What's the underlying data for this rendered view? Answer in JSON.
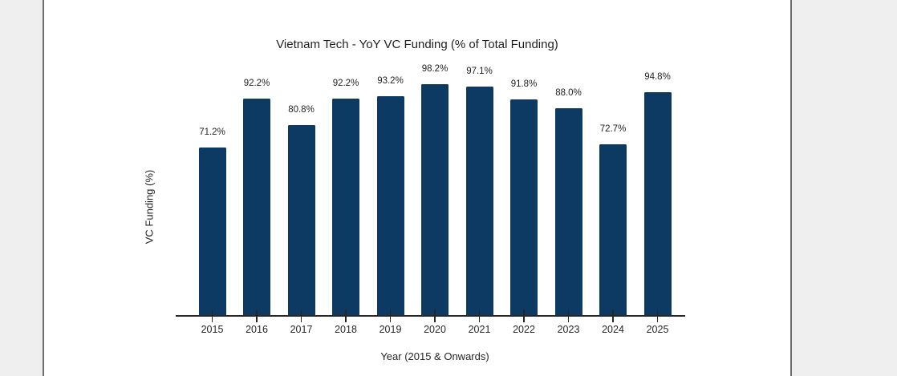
{
  "page": {
    "gutter_color": "#efefef",
    "gutter_border_color": "#6e6e6e",
    "canvas_color": "#ffffff"
  },
  "chart_data": {
    "type": "bar",
    "title": "Vietnam Tech - YoY VC Funding (% of Total Funding)",
    "xlabel": "Year (2015 & Onwards)",
    "ylabel": "VC Funding (%)",
    "categories": [
      "2015",
      "2016",
      "2017",
      "2018",
      "2019",
      "2020",
      "2021",
      "2022",
      "2023",
      "2024",
      "2025"
    ],
    "values": [
      71.2,
      92.2,
      80.8,
      92.2,
      93.2,
      98.2,
      97.1,
      91.8,
      88.0,
      72.7,
      94.8
    ],
    "data_labels": [
      "71.2%",
      "92.2%",
      "80.8%",
      "92.2%",
      "93.2%",
      "98.2%",
      "97.1%",
      "91.8%",
      "88.0%",
      "72.7%",
      "94.8%"
    ],
    "bar_color": "#0d3a63",
    "axis_color": "#262626",
    "text_color": "#1f1f1f",
    "ylim": [
      0,
      105
    ],
    "grid": false,
    "legend": null,
    "y_ticks_visible": false
  }
}
